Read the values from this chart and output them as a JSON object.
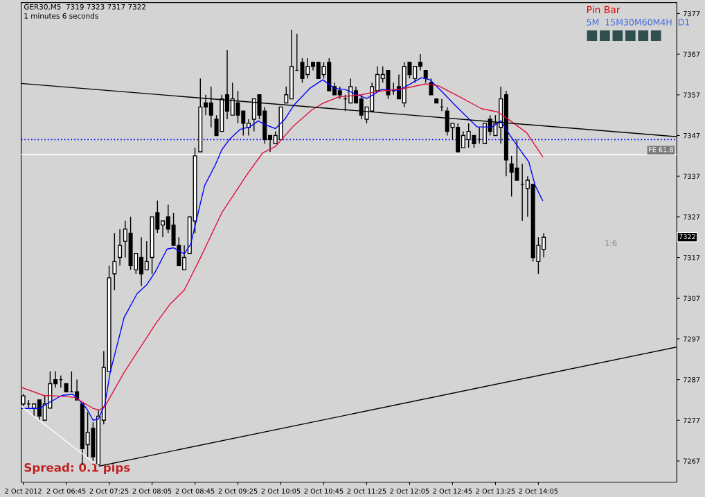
{
  "chart_data": {
    "type": "candlestick",
    "title": "GER30,M5  7319 7323 7317 7322",
    "subtitle": "1 minutes 6 seconds",
    "annotations": [
      "Pin Bar",
      "5M  15M30M60M4H  D1",
      "1:6",
      "Spread: 0.1 pips",
      "7322"
    ],
    "x": [
      "2012-10-02T06:05",
      "2012-10-02T06:10",
      "2012-10-02T06:15",
      "2012-10-02T06:20",
      "2012-10-02T06:25",
      "2012-10-02T06:30",
      "2012-10-02T06:35",
      "2012-10-02T06:40",
      "2012-10-02T06:45",
      "2012-10-02T06:50",
      "2012-10-02T06:55",
      "2012-10-02T07:00",
      "2012-10-02T07:05",
      "2012-10-02T07:10",
      "2012-10-02T07:15",
      "2012-10-02T07:20",
      "2012-10-02T07:25",
      "2012-10-02T07:30",
      "2012-10-02T07:35",
      "2012-10-02T07:40",
      "2012-10-02T07:45",
      "2012-10-02T07:50",
      "2012-10-02T07:55",
      "2012-10-02T08:00",
      "2012-10-02T08:05",
      "2012-10-02T08:10",
      "2012-10-02T08:15",
      "2012-10-02T08:20",
      "2012-10-02T08:25",
      "2012-10-02T08:30",
      "2012-10-02T08:35",
      "2012-10-02T08:40",
      "2012-10-02T08:45",
      "2012-10-02T08:50",
      "2012-10-02T08:55",
      "2012-10-02T09:00",
      "2012-10-02T09:05",
      "2012-10-02T09:10",
      "2012-10-02T09:15",
      "2012-10-02T09:20",
      "2012-10-02T09:25",
      "2012-10-02T09:30",
      "2012-10-02T09:35",
      "2012-10-02T09:40",
      "2012-10-02T09:45",
      "2012-10-02T09:50",
      "2012-10-02T09:55",
      "2012-10-02T10:00",
      "2012-10-02T10:05",
      "2012-10-02T10:10",
      "2012-10-02T10:15",
      "2012-10-02T10:20",
      "2012-10-02T10:25",
      "2012-10-02T10:30",
      "2012-10-02T10:35",
      "2012-10-02T10:40",
      "2012-10-02T10:45",
      "2012-10-02T10:50",
      "2012-10-02T10:55",
      "2012-10-02T11:00",
      "2012-10-02T11:05",
      "2012-10-02T11:10",
      "2012-10-02T11:15",
      "2012-10-02T11:20",
      "2012-10-02T11:25",
      "2012-10-02T11:30",
      "2012-10-02T11:35",
      "2012-10-02T11:40",
      "2012-10-02T11:45",
      "2012-10-02T11:50",
      "2012-10-02T11:55",
      "2012-10-02T12:00",
      "2012-10-02T12:05",
      "2012-10-02T12:10",
      "2012-10-02T12:15",
      "2012-10-02T12:20",
      "2012-10-02T12:25",
      "2012-10-02T12:30",
      "2012-10-02T12:35",
      "2012-10-02T12:40",
      "2012-10-02T12:45",
      "2012-10-02T12:50",
      "2012-10-02T12:55",
      "2012-10-02T13:00",
      "2012-10-02T13:05",
      "2012-10-02T13:10",
      "2012-10-02T13:15",
      "2012-10-02T13:20",
      "2012-10-02T13:25",
      "2012-10-02T13:30",
      "2012-10-02T13:35",
      "2012-10-02T13:40",
      "2012-10-02T13:45",
      "2012-10-02T13:50",
      "2012-10-02T13:55",
      "2012-10-02T14:00",
      "2012-10-02T14:05",
      "2012-10-02T14:10"
    ],
    "ohlc": [
      [
        7281,
        7283.5,
        7280.5,
        7283
      ],
      [
        7281,
        7282,
        7280,
        7281
      ],
      [
        7280,
        7281,
        7278,
        7281
      ],
      [
        7282,
        7282,
        7277,
        7278
      ],
      [
        7277,
        7283,
        7277,
        7281
      ],
      [
        7280,
        7289,
        7280,
        7286
      ],
      [
        7287,
        7289,
        7285,
        7286
      ],
      [
        7287,
        7288,
        7285,
        7287
      ],
      [
        7286,
        7286,
        7284,
        7284
      ],
      [
        7284,
        7289,
        7284,
        7284
      ],
      [
        7284,
        7287,
        7282,
        7282
      ],
      [
        7281,
        7281,
        7266,
        7270
      ],
      [
        7271,
        7279,
        7268,
        7274
      ],
      [
        7275,
        7276.5,
        7267,
        7268
      ],
      [
        7266,
        7279.5,
        7266,
        7278
      ],
      [
        7277,
        7294,
        7276,
        7290
      ],
      [
        7289,
        7315,
        7289,
        7312
      ],
      [
        7313,
        7323,
        7309,
        7316
      ],
      [
        7317,
        7324,
        7315,
        7320
      ],
      [
        7321,
        7326,
        7317,
        7324
      ],
      [
        7323,
        7327,
        7314,
        7315
      ],
      [
        7314,
        7318,
        7313,
        7318
      ],
      [
        7317,
        7322,
        7310,
        7313
      ],
      [
        7314,
        7321,
        7314,
        7316
      ],
      [
        7317,
        7327,
        7313,
        7327
      ],
      [
        7328,
        7331,
        7323,
        7324
      ],
      [
        7325,
        7326,
        7322,
        7326
      ],
      [
        7327,
        7330,
        7323,
        7324
      ],
      [
        7325,
        7328,
        7320,
        7320
      ],
      [
        7320,
        7322,
        7315,
        7315
      ],
      [
        7314,
        7320,
        7314,
        7317
      ],
      [
        7318,
        7327,
        7318,
        7327
      ],
      [
        7326,
        7344,
        7323,
        7342
      ],
      [
        7343,
        7361,
        7343,
        7354
      ],
      [
        7355,
        7357,
        7352,
        7354
      ],
      [
        7355,
        7359,
        7349,
        7352
      ],
      [
        7351,
        7352,
        7347,
        7347
      ],
      [
        7348,
        7357,
        7348,
        7356
      ],
      [
        7357,
        7368,
        7351,
        7353
      ],
      [
        7352,
        7360,
        7352,
        7356
      ],
      [
        7355,
        7358,
        7350,
        7352
      ],
      [
        7353,
        7353,
        7347,
        7350
      ],
      [
        7349,
        7351,
        7347,
        7350
      ],
      [
        7351,
        7356,
        7348,
        7356
      ],
      [
        7357,
        7357,
        7351,
        7352
      ],
      [
        7353,
        7354,
        7345,
        7346
      ],
      [
        7347,
        7347,
        7343,
        7346
      ],
      [
        7345,
        7348,
        7345,
        7347
      ],
      [
        7346,
        7354,
        7346,
        7354
      ],
      [
        7355,
        7359,
        7355,
        7357
      ],
      [
        7356,
        7373,
        7356,
        7364
      ],
      [
        7363,
        7372,
        7363,
        7363
      ],
      [
        7365,
        7366,
        7360,
        7361
      ],
      [
        7362,
        7366,
        7361,
        7364
      ],
      [
        7365,
        7365,
        7363,
        7364
      ],
      [
        7365,
        7365,
        7361,
        7361
      ],
      [
        7362,
        7365,
        7361,
        7364
      ],
      [
        7365,
        7366,
        7358,
        7358
      ],
      [
        7359,
        7360,
        7357,
        7357
      ],
      [
        7358,
        7359,
        7356,
        7357
      ],
      [
        7356,
        7357,
        7353,
        7356
      ],
      [
        7355,
        7361,
        7355,
        7359
      ],
      [
        7358,
        7359,
        7355,
        7355
      ],
      [
        7356,
        7357,
        7351,
        7352
      ],
      [
        7351,
        7354,
        7350,
        7354
      ],
      [
        7353,
        7360,
        7353,
        7359
      ],
      [
        7358,
        7364,
        7358,
        7362
      ],
      [
        7361,
        7364,
        7360,
        7362
      ],
      [
        7363,
        7363,
        7356,
        7357
      ],
      [
        7358,
        7360,
        7357,
        7358
      ],
      [
        7359,
        7362,
        7356,
        7356
      ],
      [
        7355,
        7365,
        7354,
        7364
      ],
      [
        7365,
        7365,
        7361,
        7362
      ],
      [
        7361,
        7364,
        7360,
        7364
      ],
      [
        7365,
        7367,
        7363,
        7364
      ],
      [
        7363,
        7363,
        7360,
        7361
      ],
      [
        7360,
        7361,
        7357,
        7357
      ],
      [
        7356,
        7356,
        7355,
        7355
      ],
      [
        7354,
        7356,
        7353,
        7354
      ],
      [
        7353,
        7354,
        7347,
        7348
      ],
      [
        7349,
        7350,
        7346,
        7350
      ],
      [
        7349,
        7350,
        7343,
        7343
      ],
      [
        7344,
        7348,
        7344,
        7347
      ],
      [
        7346,
        7350,
        7344,
        7348
      ],
      [
        7347,
        7347,
        7344,
        7345
      ],
      [
        7346,
        7349,
        7345,
        7346
      ],
      [
        7345,
        7350,
        7345,
        7350
      ],
      [
        7351,
        7352,
        7347,
        7348
      ],
      [
        7347,
        7352,
        7347,
        7350
      ],
      [
        7349,
        7359,
        7345,
        7356
      ],
      [
        7357,
        7358,
        7337,
        7341
      ],
      [
        7340,
        7342,
        7332,
        7338
      ],
      [
        7339,
        7346,
        7336,
        7336
      ],
      [
        7335,
        7340,
        7326,
        7335
      ],
      [
        7334,
        7337,
        7327,
        7336
      ],
      [
        7335,
        7335,
        7316,
        7317
      ],
      [
        7316,
        7322,
        7313,
        7320
      ],
      [
        7319,
        7323,
        7317,
        7322
      ]
    ],
    "series": [
      {
        "type": "line",
        "color": "#0000ff",
        "x": [
          "2012-10-02T06:03",
          "2012-10-02T06:20",
          "2012-10-02T06:30",
          "2012-10-02T06:41",
          "2012-10-02T06:51",
          "2012-10-02T06:57",
          "2012-10-02T07:04",
          "2012-10-02T07:10",
          "2012-10-02T07:15",
          "2012-10-02T07:21",
          "2012-10-02T07:26",
          "2012-10-02T07:39",
          "2012-10-02T07:51",
          "2012-10-02T08:00",
          "2012-10-02T08:08",
          "2012-10-02T08:19",
          "2012-10-02T08:25",
          "2012-10-02T08:35",
          "2012-10-02T08:41",
          "2012-10-02T08:54",
          "2012-10-02T09:04",
          "2012-10-02T09:10",
          "2012-10-02T09:17",
          "2012-10-02T09:27",
          "2012-10-02T09:36",
          "2012-10-02T09:44",
          "2012-10-02T09:50",
          "2012-10-02T10:00",
          "2012-10-02T10:09",
          "2012-10-02T10:17",
          "2012-10-02T10:32",
          "2012-10-02T10:44",
          "2012-10-02T10:55",
          "2012-10-02T11:05",
          "2012-10-02T11:25",
          "2012-10-02T11:39",
          "2012-10-02T11:55",
          "2012-10-02T12:16",
          "2012-10-02T12:24",
          "2012-10-02T12:37",
          "2012-10-02T12:46",
          "2012-10-02T13:08",
          "2012-10-02T13:22",
          "2012-10-02T13:30",
          "2012-10-02T13:39",
          "2012-10-02T13:50",
          "2012-10-02T13:56",
          "2012-10-02T14:02",
          "2012-10-02T14:09"
        ],
        "values": [
          7279.9,
          7279.9,
          7281.5,
          7283.1,
          7283.4,
          7282.0,
          7279.9,
          7277.0,
          7277.3,
          7280.9,
          7288.8,
          7302.3,
          7308.1,
          7310.3,
          7313.5,
          7319.1,
          7319.4,
          7317.9,
          7320.3,
          7334.7,
          7339.8,
          7343.5,
          7346.0,
          7348.5,
          7349.1,
          7350.6,
          7349.7,
          7348.7,
          7351.1,
          7354.4,
          7358.6,
          7360.7,
          7358.6,
          7358.3,
          7356.1,
          7358.3,
          7358.1,
          7361.2,
          7360.7,
          7357.3,
          7354.8,
          7349.1,
          7349.1,
          7350.6,
          7346.9,
          7342.7,
          7340.6,
          7334.7,
          7331.0
        ]
      },
      {
        "type": "line",
        "color": "#e0103a",
        "x": [
          "2012-10-02T06:03",
          "2012-10-02T06:24",
          "2012-10-02T06:41",
          "2012-10-02T06:53",
          "2012-10-02T07:10",
          "2012-10-02T07:16",
          "2012-10-02T07:21",
          "2012-10-02T07:39",
          "2012-10-02T08:08",
          "2012-10-02T08:22",
          "2012-10-02T08:35",
          "2012-10-02T08:50",
          "2012-10-02T09:10",
          "2012-10-02T09:34",
          "2012-10-02T09:48",
          "2012-10-02T10:00",
          "2012-10-02T10:17",
          "2012-10-02T10:34",
          "2012-10-02T10:44",
          "2012-10-02T10:59",
          "2012-10-02T11:20",
          "2012-10-02T11:34",
          "2012-10-02T11:59",
          "2012-10-02T12:20",
          "2012-10-02T12:32",
          "2012-10-02T12:51",
          "2012-10-02T13:12",
          "2012-10-02T13:27",
          "2012-10-02T13:39",
          "2012-10-02T13:54",
          "2012-10-02T14:09"
        ],
        "values": [
          7285.1,
          7283.1,
          7282.9,
          7282.6,
          7279.9,
          7279.5,
          7280.4,
          7288.8,
          7300.6,
          7305.6,
          7309.0,
          7316.9,
          7328.0,
          7337.6,
          7342.7,
          7344.3,
          7349.4,
          7353.3,
          7354.9,
          7356.5,
          7357.0,
          7357.8,
          7358.5,
          7359.7,
          7359.2,
          7356.6,
          7353.6,
          7352.8,
          7350.6,
          7347.7,
          7341.8
        ]
      },
      {
        "type": "line",
        "color": "#000000",
        "x": [
          "2012-10-02T06:03",
          "2012-10-02T16:14"
        ],
        "values": [
          7359.8,
          7346.7
        ]
      },
      {
        "type": "line",
        "color": "#000000",
        "x": [
          "2012-10-02T07:15",
          "2012-10-02T16:14"
        ],
        "values": [
          7265.7,
          7295.0
        ]
      },
      {
        "type": "line",
        "color": "#ffffff",
        "x": [
          "2012-10-02T06:03",
          "2012-10-02T07:15"
        ],
        "values": [
          7280.4,
          7265.7
        ]
      }
    ],
    "ref_lines": [
      {
        "axis": "y",
        "value": 7346.0,
        "color": "#0000ff",
        "line_style": "dotted"
      },
      {
        "axis": "y",
        "value": 7342.3,
        "label": "FE 61.8",
        "color": "#ffffff",
        "line_style": "solid"
      }
    ],
    "xlim": [
      "2012-10-02T06:03",
      "2012-10-02T16:14"
    ],
    "xticks": [
      {
        "value": "2012-10-02T06:05",
        "label": "2 Oct 2012"
      },
      {
        "value": "2012-10-02T06:45",
        "label": "2 Oct 06:45"
      },
      {
        "value": "2012-10-02T07:25",
        "label": "2 Oct 07:25"
      },
      {
        "value": "2012-10-02T08:05",
        "label": "2 Oct 08:05"
      },
      {
        "value": "2012-10-02T08:45",
        "label": "2 Oct 08:45"
      },
      {
        "value": "2012-10-02T09:25",
        "label": "2 Oct 09:25"
      },
      {
        "value": "2012-10-02T10:05",
        "label": "2 Oct 10:05"
      },
      {
        "value": "2012-10-02T10:45",
        "label": "2 Oct 10:45"
      },
      {
        "value": "2012-10-02T11:25",
        "label": "2 Oct 11:25"
      },
      {
        "value": "2012-10-02T12:05",
        "label": "2 Oct 12:05"
      },
      {
        "value": "2012-10-02T12:45",
        "label": "2 Oct 12:45"
      },
      {
        "value": "2012-10-02T13:25",
        "label": "2 Oct 13:25"
      },
      {
        "value": "2012-10-02T14:05",
        "label": "2 Oct 14:05"
      }
    ],
    "ylim": [
      7261.8,
      7379.7
    ],
    "yticks": [
      7267,
      7277,
      7287,
      7297,
      7307,
      7317,
      7327,
      7337,
      7347,
      7357,
      7367,
      7377
    ],
    "grid": false,
    "legend": false
  }
}
